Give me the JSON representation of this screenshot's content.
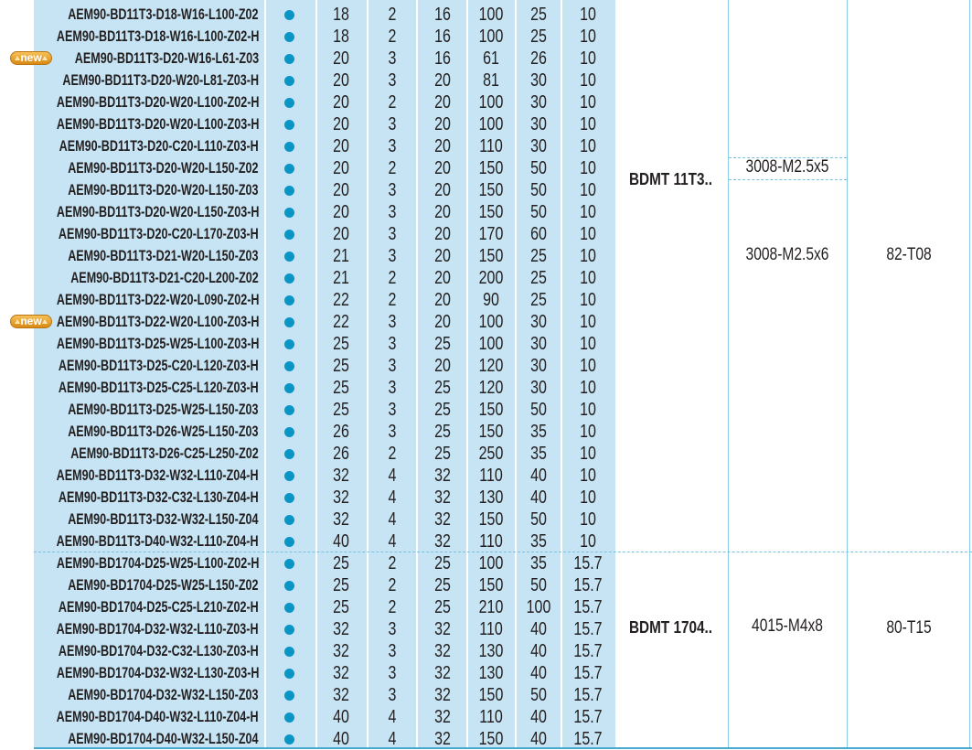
{
  "badge_label": "new",
  "colors": {
    "table_bg": "#c6e4f3",
    "dot": "#0b94c6",
    "badge": "#f0a830"
  },
  "top_partial_value": "10",
  "groups": [
    {
      "insert": "BDMT 11T3..",
      "screws": [
        "3008-M2.5x5",
        "3008-M2.5x6"
      ],
      "key": "82-T08",
      "rows": [
        {
          "code": "AEM90-BD11T3-D18-W16-L100-Z02",
          "vals": [
            "18",
            "2",
            "16",
            "100",
            "25",
            "10"
          ]
        },
        {
          "code": "AEM90-BD11T3-D18-W16-L100-Z02-H",
          "vals": [
            "18",
            "2",
            "16",
            "100",
            "25",
            "10"
          ]
        },
        {
          "code": "AEM90-BD11T3-D20-W16-L61-Z03",
          "new": true,
          "vals": [
            "20",
            "3",
            "16",
            "61",
            "26",
            "10"
          ]
        },
        {
          "code": "AEM90-BD11T3-D20-W20-L81-Z03-H",
          "vals": [
            "20",
            "3",
            "20",
            "81",
            "30",
            "10"
          ]
        },
        {
          "code": "AEM90-BD11T3-D20-W20-L100-Z02-H",
          "vals": [
            "20",
            "2",
            "20",
            "100",
            "30",
            "10"
          ]
        },
        {
          "code": "AEM90-BD11T3-D20-W20-L100-Z03-H",
          "vals": [
            "20",
            "3",
            "20",
            "100",
            "30",
            "10"
          ]
        },
        {
          "code": "AEM90-BD11T3-D20-C20-L110-Z03-H",
          "vals": [
            "20",
            "3",
            "20",
            "110",
            "30",
            "10"
          ]
        },
        {
          "code": "AEM90-BD11T3-D20-W20-L150-Z02",
          "vals": [
            "20",
            "2",
            "20",
            "150",
            "50",
            "10"
          ]
        },
        {
          "code": "AEM90-BD11T3-D20-W20-L150-Z03",
          "vals": [
            "20",
            "3",
            "20",
            "150",
            "50",
            "10"
          ]
        },
        {
          "code": "AEM90-BD11T3-D20-W20-L150-Z03-H",
          "vals": [
            "20",
            "3",
            "20",
            "150",
            "50",
            "10"
          ]
        },
        {
          "code": "AEM90-BD11T3-D20-C20-L170-Z03-H",
          "vals": [
            "20",
            "3",
            "20",
            "170",
            "60",
            "10"
          ]
        },
        {
          "code": "AEM90-BD11T3-D21-W20-L150-Z03",
          "vals": [
            "21",
            "3",
            "20",
            "150",
            "25",
            "10"
          ]
        },
        {
          "code": "AEM90-BD11T3-D21-C20-L200-Z02",
          "vals": [
            "21",
            "2",
            "20",
            "200",
            "25",
            "10"
          ]
        },
        {
          "code": "AEM90-BD11T3-D22-W20-L090-Z02-H",
          "vals": [
            "22",
            "2",
            "20",
            "90",
            "25",
            "10"
          ]
        },
        {
          "code": "AEM90-BD11T3-D22-W20-L100-Z03-H",
          "new": true,
          "vals": [
            "22",
            "3",
            "20",
            "100",
            "30",
            "10"
          ]
        },
        {
          "code": "AEM90-BD11T3-D25-W25-L100-Z03-H",
          "vals": [
            "25",
            "3",
            "25",
            "100",
            "30",
            "10"
          ]
        },
        {
          "code": "AEM90-BD11T3-D25-C20-L120-Z03-H",
          "vals": [
            "25",
            "3",
            "20",
            "120",
            "30",
            "10"
          ]
        },
        {
          "code": "AEM90-BD11T3-D25-C25-L120-Z03-H",
          "vals": [
            "25",
            "3",
            "25",
            "120",
            "30",
            "10"
          ]
        },
        {
          "code": "AEM90-BD11T3-D25-W25-L150-Z03",
          "vals": [
            "25",
            "3",
            "25",
            "150",
            "50",
            "10"
          ]
        },
        {
          "code": "AEM90-BD11T3-D26-W25-L150-Z03",
          "vals": [
            "26",
            "3",
            "25",
            "150",
            "35",
            "10"
          ]
        },
        {
          "code": "AEM90-BD11T3-D26-C25-L250-Z02",
          "vals": [
            "26",
            "2",
            "25",
            "250",
            "35",
            "10"
          ]
        },
        {
          "code": "AEM90-BD11T3-D32-W32-L110-Z04-H",
          "vals": [
            "32",
            "4",
            "32",
            "110",
            "40",
            "10"
          ]
        },
        {
          "code": "AEM90-BD11T3-D32-C32-L130-Z04-H",
          "vals": [
            "32",
            "4",
            "32",
            "130",
            "40",
            "10"
          ]
        },
        {
          "code": "AEM90-BD11T3-D32-W32-L150-Z04",
          "vals": [
            "32",
            "4",
            "32",
            "150",
            "50",
            "10"
          ]
        },
        {
          "code": "AEM90-BD11T3-D40-W32-L110-Z04-H",
          "vals": [
            "40",
            "4",
            "32",
            "110",
            "35",
            "10"
          ]
        }
      ]
    },
    {
      "insert": "BDMT 1704..",
      "screws": [
        "4015-M4x8"
      ],
      "key": "80-T15",
      "rows": [
        {
          "code": "AEM90-BD1704-D25-W25-L100-Z02-H",
          "vals": [
            "25",
            "2",
            "25",
            "100",
            "35",
            "15.7"
          ]
        },
        {
          "code": "AEM90-BD1704-D25-W25-L150-Z02",
          "vals": [
            "25",
            "2",
            "25",
            "150",
            "50",
            "15.7"
          ]
        },
        {
          "code": "AEM90-BD1704-D25-C25-L210-Z02-H",
          "vals": [
            "25",
            "2",
            "25",
            "210",
            "100",
            "15.7"
          ]
        },
        {
          "code": "AEM90-BD1704-D32-W32-L110-Z03-H",
          "vals": [
            "32",
            "3",
            "32",
            "110",
            "40",
            "15.7"
          ]
        },
        {
          "code": "AEM90-BD1704-D32-C32-L130-Z03-H",
          "vals": [
            "32",
            "3",
            "32",
            "130",
            "40",
            "15.7"
          ]
        },
        {
          "code": "AEM90-BD1704-D32-W32-L130-Z03-H",
          "vals": [
            "32",
            "3",
            "32",
            "130",
            "40",
            "15.7"
          ]
        },
        {
          "code": "AEM90-BD1704-D32-W32-L150-Z03",
          "vals": [
            "32",
            "3",
            "32",
            "150",
            "50",
            "15.7"
          ]
        },
        {
          "code": "AEM90-BD1704-D40-W32-L110-Z04-H",
          "vals": [
            "40",
            "4",
            "32",
            "110",
            "40",
            "15.7"
          ]
        },
        {
          "code": "AEM90-BD1704-D40-W32-L150-Z04",
          "vals": [
            "40",
            "4",
            "32",
            "150",
            "40",
            "15.7"
          ]
        }
      ]
    }
  ]
}
